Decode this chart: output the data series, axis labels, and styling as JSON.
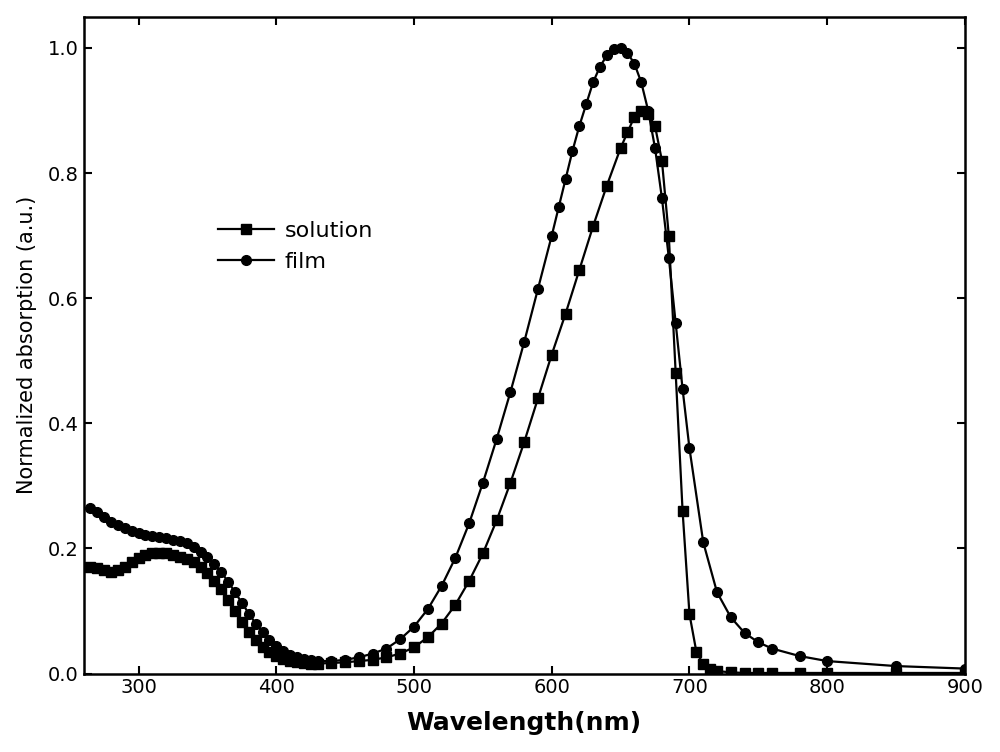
{
  "solution_x": [
    265,
    270,
    275,
    280,
    285,
    290,
    295,
    300,
    305,
    310,
    315,
    320,
    325,
    330,
    335,
    340,
    345,
    350,
    355,
    360,
    365,
    370,
    375,
    380,
    385,
    390,
    395,
    400,
    405,
    410,
    415,
    420,
    425,
    430,
    440,
    450,
    460,
    470,
    480,
    490,
    500,
    510,
    520,
    530,
    540,
    550,
    560,
    570,
    580,
    590,
    600,
    610,
    620,
    630,
    640,
    650,
    655,
    660,
    665,
    670,
    675,
    680,
    685,
    690,
    695,
    700,
    705,
    710,
    715,
    720,
    730,
    740,
    750,
    760,
    780,
    800,
    850,
    900
  ],
  "solution_y": [
    0.17,
    0.168,
    0.165,
    0.163,
    0.165,
    0.17,
    0.178,
    0.185,
    0.19,
    0.192,
    0.193,
    0.192,
    0.19,
    0.187,
    0.183,
    0.178,
    0.17,
    0.16,
    0.148,
    0.135,
    0.118,
    0.1,
    0.082,
    0.066,
    0.053,
    0.042,
    0.034,
    0.028,
    0.024,
    0.02,
    0.018,
    0.017,
    0.016,
    0.016,
    0.017,
    0.018,
    0.02,
    0.022,
    0.026,
    0.032,
    0.042,
    0.058,
    0.08,
    0.11,
    0.148,
    0.192,
    0.245,
    0.305,
    0.37,
    0.44,
    0.51,
    0.575,
    0.645,
    0.715,
    0.78,
    0.84,
    0.865,
    0.89,
    0.9,
    0.895,
    0.875,
    0.82,
    0.7,
    0.48,
    0.26,
    0.095,
    0.035,
    0.015,
    0.008,
    0.004,
    0.002,
    0.001,
    0.001,
    0.001,
    0.001,
    0.001,
    0.001,
    0.001
  ],
  "film_x": [
    265,
    270,
    275,
    280,
    285,
    290,
    295,
    300,
    305,
    310,
    315,
    320,
    325,
    330,
    335,
    340,
    345,
    350,
    355,
    360,
    365,
    370,
    375,
    380,
    385,
    390,
    395,
    400,
    405,
    410,
    415,
    420,
    425,
    430,
    440,
    450,
    460,
    470,
    480,
    490,
    500,
    510,
    520,
    530,
    540,
    550,
    560,
    570,
    580,
    590,
    600,
    605,
    610,
    615,
    620,
    625,
    630,
    635,
    640,
    645,
    650,
    655,
    660,
    665,
    670,
    675,
    680,
    685,
    690,
    695,
    700,
    710,
    720,
    730,
    740,
    750,
    760,
    780,
    800,
    850,
    900
  ],
  "film_y": [
    0.265,
    0.258,
    0.25,
    0.243,
    0.238,
    0.232,
    0.228,
    0.224,
    0.222,
    0.22,
    0.218,
    0.216,
    0.214,
    0.212,
    0.208,
    0.202,
    0.195,
    0.186,
    0.175,
    0.162,
    0.147,
    0.13,
    0.113,
    0.096,
    0.08,
    0.066,
    0.054,
    0.044,
    0.036,
    0.03,
    0.026,
    0.023,
    0.021,
    0.02,
    0.02,
    0.022,
    0.026,
    0.032,
    0.04,
    0.055,
    0.075,
    0.103,
    0.14,
    0.185,
    0.24,
    0.305,
    0.375,
    0.45,
    0.53,
    0.615,
    0.7,
    0.745,
    0.79,
    0.835,
    0.875,
    0.91,
    0.945,
    0.97,
    0.988,
    0.998,
    1.0,
    0.992,
    0.975,
    0.945,
    0.9,
    0.84,
    0.76,
    0.665,
    0.56,
    0.455,
    0.36,
    0.21,
    0.13,
    0.09,
    0.065,
    0.05,
    0.04,
    0.028,
    0.02,
    0.012,
    0.008
  ],
  "xlabel": "Wavelength(nm)",
  "ylabel": "Normalized absorption (a.u.)",
  "xlim": [
    260,
    900
  ],
  "ylim": [
    0.0,
    1.05
  ],
  "xticks": [
    300,
    400,
    500,
    600,
    700,
    800,
    900
  ],
  "yticks": [
    0.0,
    0.2,
    0.4,
    0.6,
    0.8,
    1.0
  ],
  "solution_label": "solution",
  "film_label": "film",
  "line_color": "#000000",
  "marker_solution": "s",
  "marker_film": "o",
  "markersize": 7,
  "linewidth": 1.6,
  "xlabel_fontsize": 18,
  "ylabel_fontsize": 15,
  "tick_fontsize": 14,
  "legend_fontsize": 16,
  "background_color": "#ffffff"
}
